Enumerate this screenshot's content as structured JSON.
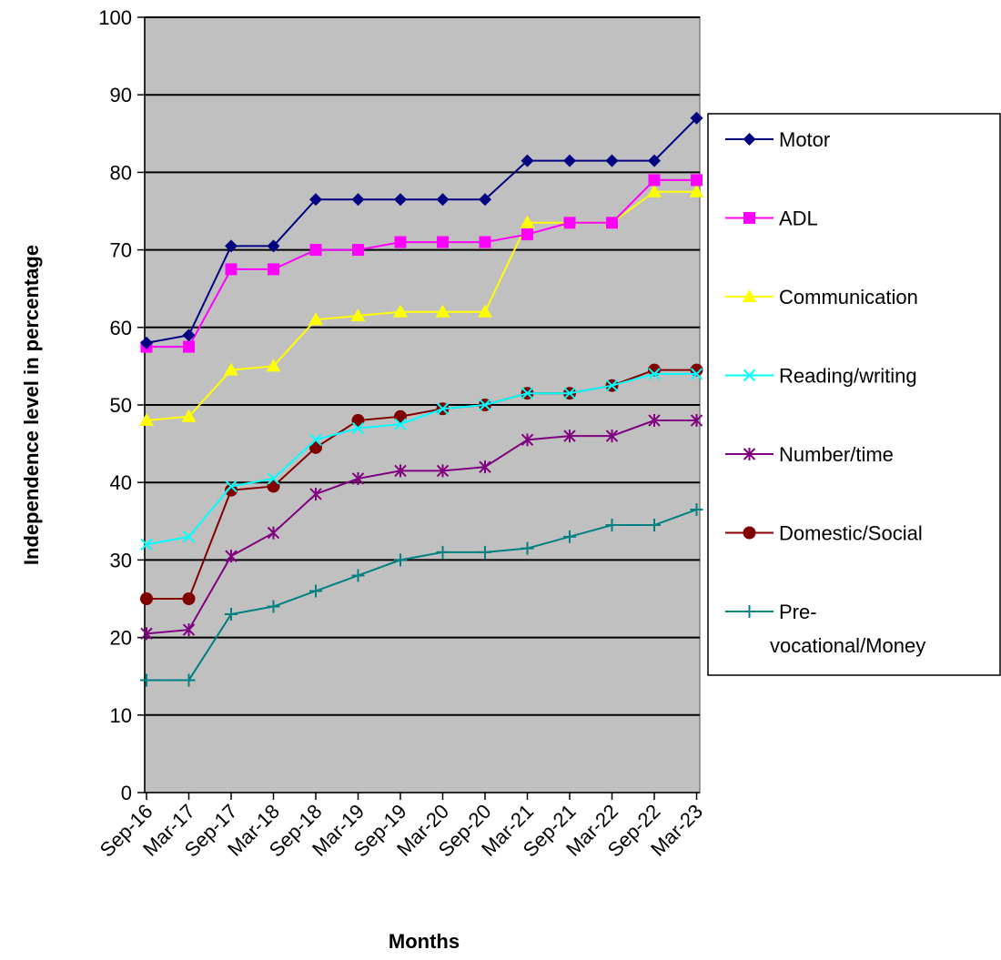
{
  "chart_data": {
    "type": "line",
    "title": "",
    "xlabel": "Months",
    "ylabel": "Independence level in percentage",
    "ylim": [
      0,
      100
    ],
    "yticks": [
      0,
      10,
      20,
      30,
      40,
      50,
      60,
      70,
      80,
      90,
      100
    ],
    "grid": true,
    "plot_background": "#c0c0c0",
    "legend_position": "right",
    "categories": [
      "Sep-16",
      "Mar-17",
      "Sep-17",
      "Mar-18",
      "Sep-18",
      "Mar-19",
      "Sep-19",
      "Mar-20",
      "Sep-20",
      "Mar-21",
      "Sep-21",
      "Mar-22",
      "Sep-22",
      "Mar-23"
    ],
    "series": [
      {
        "name": "Motor",
        "color": "#000080",
        "marker": "diamond",
        "values": [
          58,
          59,
          70.5,
          70.5,
          76.5,
          76.5,
          76.5,
          76.5,
          76.5,
          81.5,
          81.5,
          81.5,
          81.5,
          87
        ]
      },
      {
        "name": "ADL",
        "color": "#ff00ff",
        "marker": "square",
        "values": [
          57.5,
          57.5,
          67.5,
          67.5,
          70,
          70,
          71,
          71,
          71,
          72,
          73.5,
          73.5,
          79,
          79
        ]
      },
      {
        "name": "Communication",
        "color": "#ffff00",
        "marker": "triangle",
        "values": [
          48,
          48.5,
          54.5,
          55,
          61,
          61.5,
          62,
          62,
          62,
          73.5,
          73.5,
          73.5,
          77.5,
          77.5
        ]
      },
      {
        "name": "Reading/writing",
        "color": "#00ffff",
        "marker": "x",
        "values": [
          32,
          33,
          39.5,
          40.5,
          45.5,
          47,
          47.5,
          49.5,
          50,
          51.5,
          51.5,
          52.5,
          54,
          54
        ]
      },
      {
        "name": "Number/time",
        "color": "#800080",
        "marker": "star",
        "values": [
          20.5,
          21,
          30.5,
          33.5,
          38.5,
          40.5,
          41.5,
          41.5,
          42,
          45.5,
          46,
          46,
          48,
          48
        ]
      },
      {
        "name": "Domestic/Social",
        "color": "#800000",
        "marker": "circle",
        "values": [
          25,
          25,
          39,
          39.5,
          44.5,
          48,
          48.5,
          49.5,
          50,
          51.5,
          51.5,
          52.5,
          54.5,
          54.5
        ]
      },
      {
        "name": "Pre-vocational/Money",
        "color": "#008080",
        "marker": "plus",
        "legend_lines": [
          "Pre-",
          "vocational/Money"
        ],
        "values": [
          14.5,
          14.5,
          23,
          24,
          26,
          28,
          30,
          31,
          31,
          31.5,
          33,
          34.5,
          34.5,
          36.5
        ]
      }
    ]
  }
}
